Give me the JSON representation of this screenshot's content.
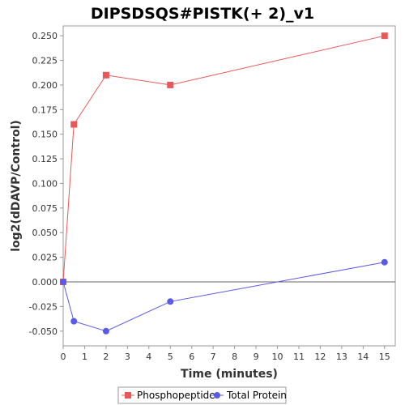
{
  "chart_data": {
    "type": "line",
    "title": "DIPSDSQS#PISTK(+ 2)_v1",
    "xlabel": "Time (minutes)",
    "ylabel": "log2(dDAVP/Control)",
    "xlim": [
      0,
      15.5
    ],
    "ylim": [
      -0.065,
      0.26
    ],
    "x_ticks": [
      "0",
      "1",
      "2",
      "3",
      "4",
      "5",
      "6",
      "7",
      "8",
      "9",
      "10",
      "11",
      "12",
      "13",
      "14",
      "15"
    ],
    "y_ticks": [
      "-0.050",
      "-0.025",
      "0.000",
      "0.025",
      "0.050",
      "0.075",
      "0.100",
      "0.125",
      "0.150",
      "0.175",
      "0.200",
      "0.225",
      "0.250"
    ],
    "grid": false,
    "zero_line": true,
    "legend_position": "bottom",
    "series": [
      {
        "name": "Phosphopeptide",
        "color": "#e8585a",
        "marker": "square",
        "x": [
          0,
          0.5,
          2,
          5,
          15
        ],
        "y": [
          0.0,
          0.16,
          0.21,
          0.2,
          0.25
        ]
      },
      {
        "name": "Total Protein",
        "color": "#5a5ae8",
        "marker": "circle",
        "x": [
          0,
          0.5,
          2,
          5,
          15
        ],
        "y": [
          0.0,
          -0.04,
          -0.05,
          -0.02,
          0.02
        ]
      }
    ]
  }
}
